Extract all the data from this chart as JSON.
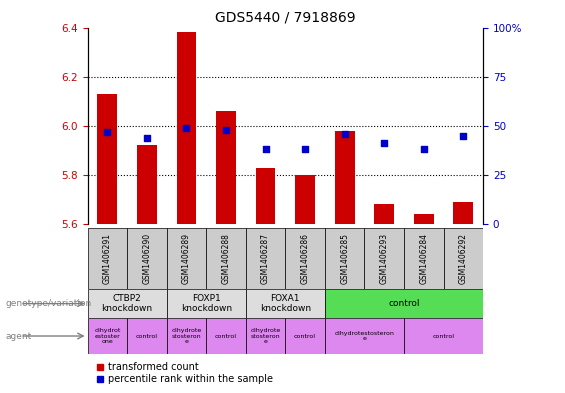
{
  "title": "GDS5440 / 7918869",
  "samples": [
    "GSM1406291",
    "GSM1406290",
    "GSM1406289",
    "GSM1406288",
    "GSM1406287",
    "GSM1406286",
    "GSM1406285",
    "GSM1406293",
    "GSM1406284",
    "GSM1406292"
  ],
  "transformed_count": [
    6.13,
    5.92,
    6.38,
    6.06,
    5.83,
    5.8,
    5.98,
    5.68,
    5.64,
    5.69
  ],
  "percentile_rank": [
    47,
    44,
    49,
    48,
    38,
    38,
    46,
    41,
    38,
    45
  ],
  "ylim_left": [
    5.6,
    6.4
  ],
  "ylim_right": [
    0,
    100
  ],
  "yticks_left": [
    5.6,
    5.8,
    6.0,
    6.2,
    6.4
  ],
  "yticks_right": [
    0,
    25,
    50,
    75,
    100
  ],
  "bar_color": "#cc0000",
  "dot_color": "#0000cc",
  "bar_width": 0.5,
  "dot_size": 25,
  "genotype_groups": [
    {
      "label": "CTBP2\nknockdown",
      "start": 0,
      "end": 2,
      "color": "#dddddd"
    },
    {
      "label": "FOXP1\nknockdown",
      "start": 2,
      "end": 4,
      "color": "#dddddd"
    },
    {
      "label": "FOXA1\nknockdown",
      "start": 4,
      "end": 6,
      "color": "#dddddd"
    },
    {
      "label": "control",
      "start": 6,
      "end": 10,
      "color": "#55dd55"
    }
  ],
  "agent_groups": [
    {
      "label": "dihydrot\nestoster\none",
      "start": 0,
      "end": 1,
      "color": "#dd88ee"
    },
    {
      "label": "control",
      "start": 1,
      "end": 2,
      "color": "#dd88ee"
    },
    {
      "label": "dihydrote\nstosteron\ne",
      "start": 2,
      "end": 3,
      "color": "#dd88ee"
    },
    {
      "label": "control",
      "start": 3,
      "end": 4,
      "color": "#dd88ee"
    },
    {
      "label": "dihydrote\nstosteron\ne",
      "start": 4,
      "end": 5,
      "color": "#dd88ee"
    },
    {
      "label": "control",
      "start": 5,
      "end": 6,
      "color": "#dd88ee"
    },
    {
      "label": "dihydrotestosteron\ne",
      "start": 6,
      "end": 8,
      "color": "#dd88ee"
    },
    {
      "label": "control",
      "start": 8,
      "end": 10,
      "color": "#dd88ee"
    }
  ],
  "legend_bar_label": "transformed count",
  "legend_dot_label": "percentile rank within the sample",
  "left_axis_color": "#cc0000",
  "right_axis_color": "#0000cc",
  "grid_color": "#000000",
  "bg_color": "#ffffff",
  "plot_bg_color": "#ffffff",
  "sample_row_color": "#cccccc"
}
